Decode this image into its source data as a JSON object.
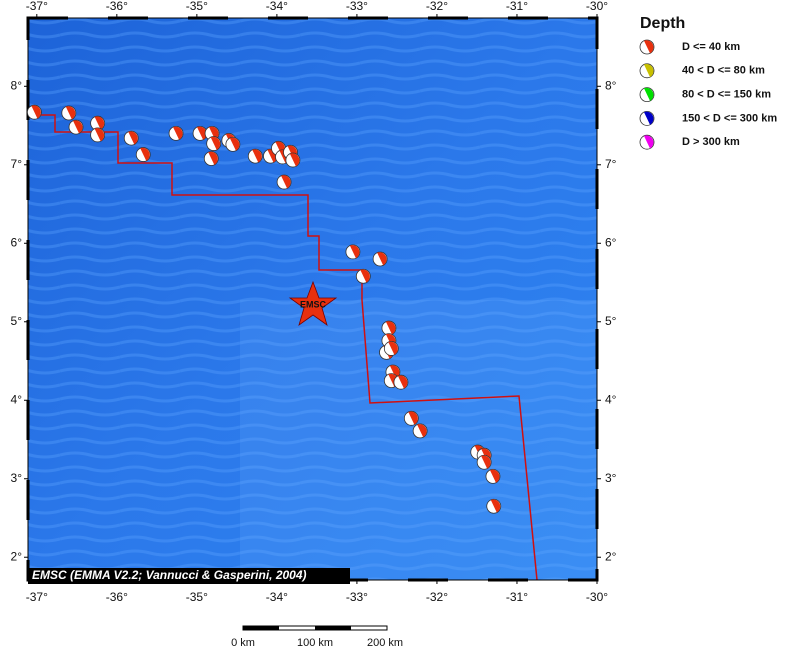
{
  "map": {
    "lon_ticks": [
      {
        "value": -37,
        "label": "-37°"
      },
      {
        "value": -36,
        "label": "-36°"
      },
      {
        "value": -35,
        "label": "-35°"
      },
      {
        "value": -34,
        "label": "-34°"
      },
      {
        "value": -33,
        "label": "-33°"
      },
      {
        "value": -32,
        "label": "-32°"
      },
      {
        "value": -31,
        "label": "-31°"
      },
      {
        "value": -30,
        "label": "-30°"
      }
    ],
    "lat_ticks": [
      {
        "value": 8,
        "label": "8°"
      },
      {
        "value": 7,
        "label": "7°"
      },
      {
        "value": 6,
        "label": "6°"
      },
      {
        "value": 5,
        "label": "5°"
      },
      {
        "value": 4,
        "label": "4°"
      },
      {
        "value": 3,
        "label": "3°"
      },
      {
        "value": 2,
        "label": "2°"
      }
    ],
    "lonlim": [
      -37.11,
      -30.0
    ],
    "latlim": [
      1.71,
      8.87
    ],
    "events": [
      [
        -37.03,
        7.67
      ],
      [
        -36.6,
        7.66
      ],
      [
        -36.51,
        7.48
      ],
      [
        -36.24,
        7.53
      ],
      [
        -36.24,
        7.38
      ],
      [
        -35.82,
        7.34
      ],
      [
        -35.67,
        7.13
      ],
      [
        -35.26,
        7.4
      ],
      [
        -34.96,
        7.4
      ],
      [
        -34.81,
        7.4
      ],
      [
        -34.79,
        7.27
      ],
      [
        -34.82,
        7.08
      ],
      [
        -34.6,
        7.31
      ],
      [
        -34.55,
        7.26
      ],
      [
        -34.27,
        7.11
      ],
      [
        -34.08,
        7.11
      ],
      [
        -33.98,
        7.21
      ],
      [
        -33.93,
        7.1
      ],
      [
        -33.83,
        7.16
      ],
      [
        -33.8,
        7.06
      ],
      [
        -33.91,
        6.78
      ],
      [
        -33.05,
        5.89
      ],
      [
        -32.71,
        5.8
      ],
      [
        -32.92,
        5.58
      ],
      [
        -32.6,
        4.92
      ],
      [
        -32.6,
        4.76
      ],
      [
        -32.63,
        4.61
      ],
      [
        -32.57,
        4.66
      ],
      [
        -32.55,
        4.36
      ],
      [
        -32.57,
        4.25
      ],
      [
        -32.45,
        4.23
      ],
      [
        -32.32,
        3.77
      ],
      [
        -32.21,
        3.61
      ],
      [
        -31.49,
        3.34
      ],
      [
        -31.41,
        3.3
      ],
      [
        -31.41,
        3.21
      ],
      [
        -31.3,
        3.03
      ],
      [
        -31.29,
        2.65
      ]
    ],
    "event_color": "#e8300e",
    "star_label": "EMSC",
    "credit": "EMSC (EMMA V2.2; Vannucci & Gasperini, 2004)"
  },
  "legend": {
    "title": "Depth",
    "items": [
      {
        "label": "D <= 40 km",
        "color": "#e8300e"
      },
      {
        "label": "40 < D <= 80 km",
        "color": "#c8c000"
      },
      {
        "label": "80 < D <= 150 km",
        "color": "#00e000"
      },
      {
        "label": "150 < D <= 300 km",
        "color": "#0000c8"
      },
      {
        "label": "D > 300 km",
        "color": "#f000f0"
      }
    ]
  },
  "scale_bar": {
    "labels": [
      "0 km",
      "100 km",
      "200 km"
    ]
  }
}
